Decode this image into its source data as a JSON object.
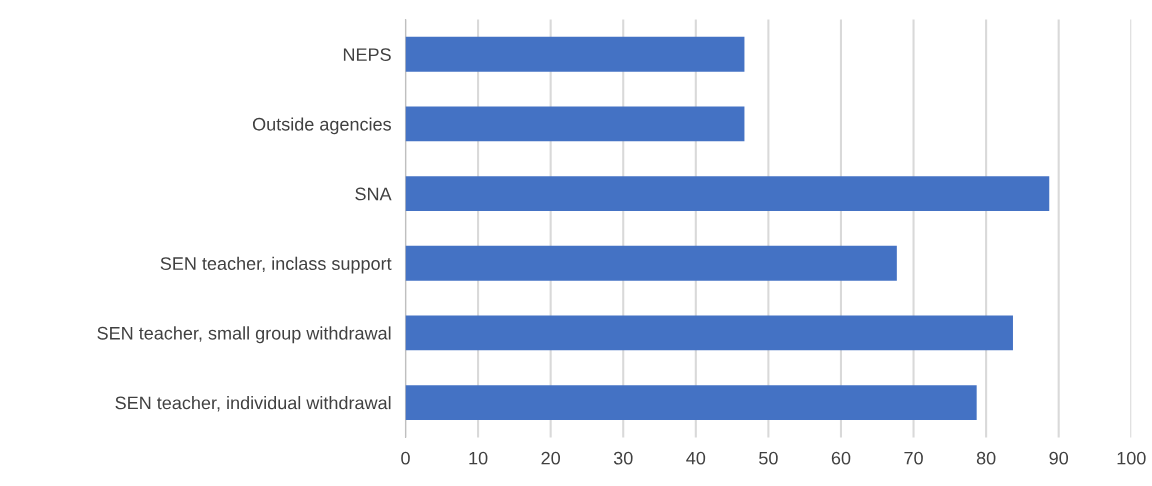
{
  "chart_data": {
    "type": "bar",
    "orientation": "horizontal",
    "categories": [
      "NEPS",
      "Outside agencies",
      "SNA",
      "SEN teacher, inclass support",
      "SEN teacher, small group withdrawal",
      "SEN teacher, individual withdrawal"
    ],
    "values": [
      46.7,
      46.7,
      88.7,
      67.7,
      83.7,
      78.7
    ],
    "color": "#4472c4",
    "xlim": [
      0,
      100
    ],
    "xticks": [
      0,
      10,
      20,
      30,
      40,
      50,
      60,
      70,
      80,
      90,
      100
    ],
    "grid": "x"
  }
}
